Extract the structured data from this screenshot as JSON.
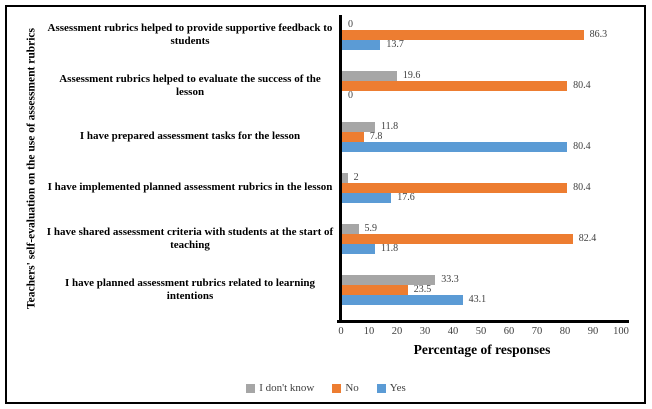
{
  "chart_data": {
    "type": "bar",
    "orientation": "horizontal",
    "title": "",
    "xlabel": "Percentage of responses",
    "ylabel": "Teachers' self-evaluation on the use of assessment rubrics",
    "xlim": [
      0,
      100
    ],
    "x_ticks": [
      0,
      10,
      20,
      30,
      40,
      50,
      60,
      70,
      80,
      90,
      100
    ],
    "grid": false,
    "legend_position": "bottom",
    "categories": [
      "Assessment rubrics helped to provide supportive feedback to students",
      "Assessment rubrics helped to evaluate the success of the lesson",
      "I have prepared assessment tasks for the lesson",
      "I have implemented planned assessment rubrics in the lesson",
      "I have shared assessment criteria with students at the start of teaching",
      "I have planned assessment rubrics related to learning intentions"
    ],
    "series": [
      {
        "name": "I don't know",
        "color": "#A6A6A6",
        "values": [
          0,
          19.6,
          11.8,
          2,
          5.9,
          33.3
        ]
      },
      {
        "name": "No",
        "color": "#ED7D31",
        "values": [
          86.3,
          80.4,
          7.8,
          80.4,
          82.4,
          23.5
        ]
      },
      {
        "name": "Yes",
        "color": "#5B9BD5",
        "values": [
          13.7,
          0,
          80.4,
          17.6,
          11.8,
          43.1
        ]
      }
    ]
  },
  "frame_color": "#000000",
  "value_label_color": "#404040"
}
